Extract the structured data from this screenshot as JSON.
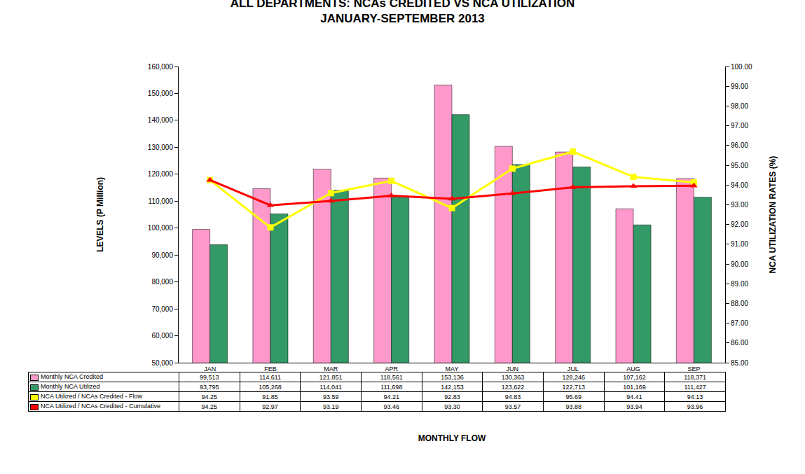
{
  "chart_data": {
    "type": "bar",
    "title": "ALL DEPARTMENTS: NCAs CREDITED VS NCA UTILIZATION",
    "subtitle": "JANUARY-SEPTEMBER 2013",
    "x_label": "MONTHLY FLOW",
    "y_label": "LEVELS (P Million)",
    "y2_label": "NCA UTILIZATION RATES (%)",
    "categories": [
      "JAN",
      "FEB",
      "MAR",
      "APR",
      "MAY",
      "JUN",
      "JUL",
      "AUG",
      "SEP"
    ],
    "series": [
      {
        "name": "Monthly NCA Credited",
        "type": "bar",
        "color": "#ff99cc",
        "values": [
          99513,
          114611,
          121851,
          118561,
          153136,
          130363,
          128246,
          107162,
          118371
        ],
        "value_labels": [
          "99,513",
          "114,611",
          "121,851",
          "118,561",
          "153,136",
          "130,363",
          "128,246",
          "107,162",
          "118,371"
        ]
      },
      {
        "name": "Monthly NCA Utilized",
        "type": "bar",
        "color": "#339966",
        "values": [
          93795,
          105268,
          114041,
          111698,
          142153,
          123622,
          122713,
          101169,
          111427
        ],
        "value_labels": [
          "93,795",
          "105,268",
          "114,041",
          "111,698",
          "142,153",
          "123,622",
          "122,713",
          "101,169",
          "111,427"
        ]
      },
      {
        "name": "NCA Utilized / NCAs Credited - Flow",
        "type": "line",
        "axis": "y2",
        "color": "#ffff00",
        "marker": "square",
        "values": [
          94.25,
          91.85,
          93.59,
          94.21,
          92.83,
          94.83,
          95.69,
          94.41,
          94.13
        ],
        "value_labels": [
          "94.25",
          "91.85",
          "93.59",
          "94.21",
          "92.83",
          "94.83",
          "95.69",
          "94.41",
          "94.13"
        ]
      },
      {
        "name": "NCA Utilized / NCAs Credited - Cumulative",
        "type": "line",
        "axis": "y2",
        "color": "#ff0000",
        "marker": "triangle-up",
        "values": [
          94.25,
          92.97,
          93.19,
          93.46,
          93.3,
          93.57,
          93.88,
          93.94,
          93.96
        ],
        "value_labels": [
          "94.25",
          "92.97",
          "93.19",
          "93.46",
          "93.30",
          "93.57",
          "93.88",
          "93.94",
          "93.96"
        ]
      }
    ],
    "ylim": [
      50000,
      160000
    ],
    "yticks": [
      {
        "value": 50000,
        "label": "50,000"
      },
      {
        "value": 60000,
        "label": "60,000"
      },
      {
        "value": 70000,
        "label": "70,000"
      },
      {
        "value": 80000,
        "label": "80,000"
      },
      {
        "value": 90000,
        "label": "90,000"
      },
      {
        "value": 100000,
        "label": "100,000"
      },
      {
        "value": 110000,
        "label": "110,000"
      },
      {
        "value": 120000,
        "label": "120,000"
      },
      {
        "value": 130000,
        "label": "130,000"
      },
      {
        "value": 140000,
        "label": "140,000"
      },
      {
        "value": 150000,
        "label": "150,000"
      },
      {
        "value": 160000,
        "label": "160,000"
      }
    ],
    "y2lim": [
      85,
      100
    ],
    "y2ticks": [
      {
        "value": 85,
        "label": "85.00"
      },
      {
        "value": 86,
        "label": "86.00"
      },
      {
        "value": 87,
        "label": "87.00"
      },
      {
        "value": 88,
        "label": "88.00"
      },
      {
        "value": 89,
        "label": "89.00"
      },
      {
        "value": 90,
        "label": "90.00"
      },
      {
        "value": 91,
        "label": "91.00"
      },
      {
        "value": 92,
        "label": "92.00"
      },
      {
        "value": 93,
        "label": "93.00"
      },
      {
        "value": 94,
        "label": "94.00"
      },
      {
        "value": 95,
        "label": "95.00"
      },
      {
        "value": 96,
        "label": "96.00"
      },
      {
        "value": 97,
        "label": "97.00"
      },
      {
        "value": 98,
        "label": "98.00"
      },
      {
        "value": 99,
        "label": "99.00"
      },
      {
        "value": 100,
        "label": "100.00"
      }
    ],
    "grid": false
  }
}
